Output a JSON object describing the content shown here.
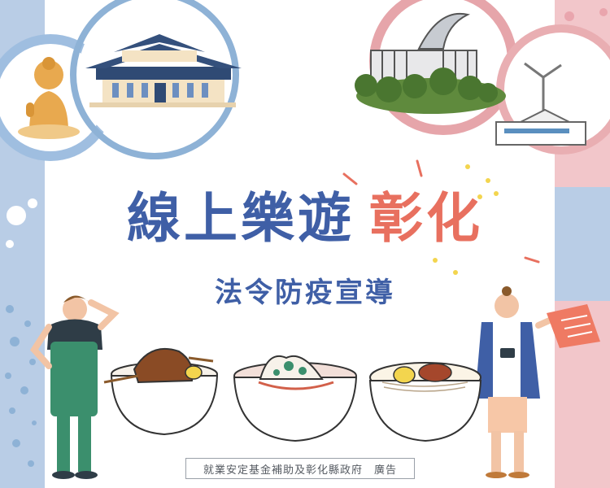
{
  "poster": {
    "title_part1": "線上樂遊",
    "title_part2": "彰化",
    "subtitle": "法令防疫宣導",
    "credit": "就業安定基金補助及彰化縣政府　廣告"
  },
  "colors": {
    "title_blue": "#3f5fa6",
    "title_coral": "#e8705f",
    "left_panel_blue": "#b9cde6",
    "right_panel_pink": "#f4cdd0",
    "ring_blue": "#8eb2d6",
    "ring_pink": "#e7a6ab"
  },
  "illustrations": {
    "top_left": [
      "buddha-statue",
      "temple-hall"
    ],
    "top_right": [
      "government-building",
      "wind-turbine-factory"
    ],
    "bottom": [
      "woman-tourist",
      "braised-pork-rice-bowl",
      "meatball-soup-bowl",
      "noodle-bowl",
      "man-tourist-with-camera"
    ]
  }
}
